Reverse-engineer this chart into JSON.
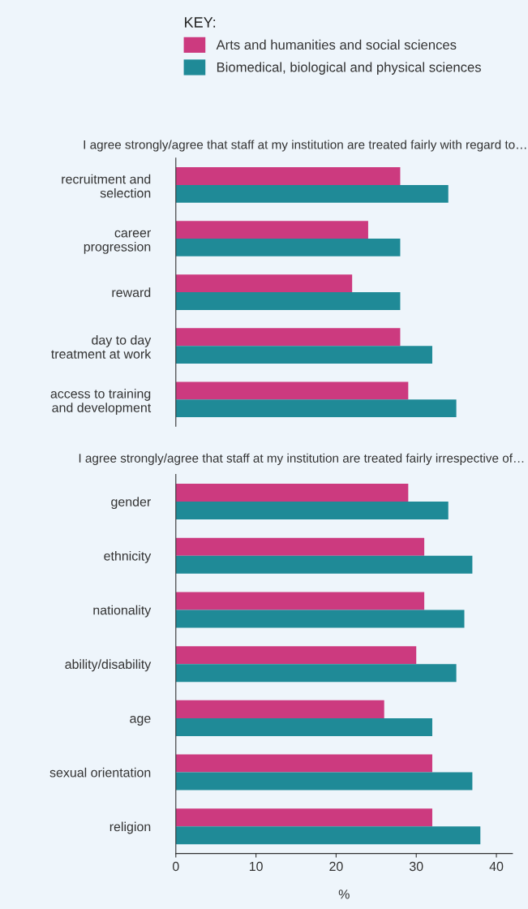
{
  "chart_data": [
    {
      "type": "bar",
      "orientation": "horizontal",
      "title": "I agree strongly/agree that staff at my institution are treated fairly with regard to…",
      "legend_title": "KEY:",
      "legend": "top",
      "grid": false,
      "tick_labels": "y",
      "xlim": [
        0,
        40
      ],
      "xticks": [
        0,
        10,
        20,
        30,
        40
      ],
      "categories": [
        "recruitment and\nselection",
        "career\nprogression",
        "reward",
        "day to day\ntreatment at work",
        "access to training\nand development"
      ],
      "series": [
        {
          "name": "Arts and humanities and social sciences",
          "color": "#cc3a7f",
          "values": [
            28,
            24,
            22,
            28,
            29
          ]
        },
        {
          "name": "Biomedical, biological and physical sciences",
          "color": "#1f8a97",
          "values": [
            34,
            28,
            28,
            32,
            35
          ]
        }
      ]
    },
    {
      "type": "bar",
      "orientation": "horizontal",
      "title": "I agree strongly/agree that staff at my institution are treated fairly irrespective of…",
      "xlabel": "%",
      "grid": false,
      "xlim": [
        0,
        42
      ],
      "xticks": [
        0,
        10,
        20,
        30,
        40
      ],
      "categories": [
        "gender",
        "ethnicity",
        "nationality",
        "ability/disability",
        "age",
        "sexual orientation",
        "religion"
      ],
      "series": [
        {
          "color": "#cc3a7f",
          "values": [
            29,
            31,
            31,
            30,
            26,
            32,
            32
          ]
        },
        {
          "color": "#1f8a97",
          "values": [
            34,
            37,
            36,
            35,
            32,
            37,
            38
          ]
        }
      ]
    }
  ]
}
